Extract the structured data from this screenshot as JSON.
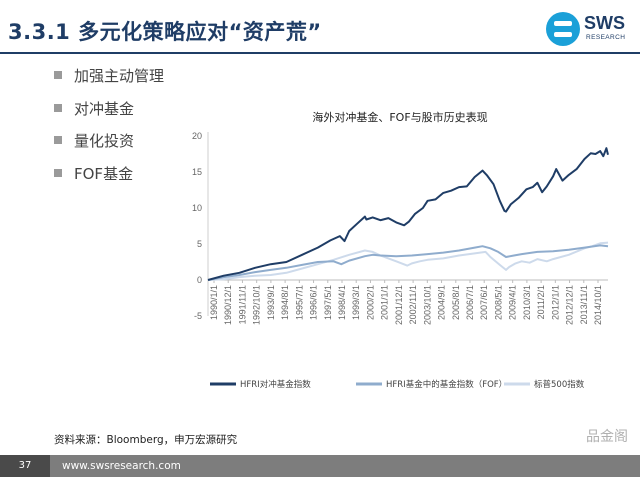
{
  "slide": {
    "title": "3.3.1 多元化策略应对“资产荒”",
    "logo_name": "SWS",
    "logo_sub": "RESEARCH",
    "source": "资料来源：Bloomberg，申万宏源研究",
    "watermark": "品金阁",
    "page_number": "37",
    "website": "www.swsresearch.com"
  },
  "bullets": [
    "加强主动管理",
    "对冲基金",
    "量化投资",
    "FOF基金"
  ],
  "colors": {
    "title": "#1f3d66",
    "hfri": "#1f3d66",
    "fof": "#8faccd",
    "sp500": "#cddaeb",
    "logo": "#1ba0d8"
  },
  "chart_data": {
    "type": "line",
    "title": "海外对冲基金、FOF与股市历史表现",
    "ylim": [
      -5,
      20
    ],
    "yticks": [
      -5,
      0,
      5,
      10,
      15,
      20
    ],
    "xlim": [
      1990.0,
      2015.5
    ],
    "xticks": [
      "1990/1/1",
      "1990/12/1",
      "1991/11/1",
      "1992/10/1",
      "1993/9/1",
      "1994/8/1",
      "1995/7/1",
      "1996/6/1",
      "1997/5/1",
      "1998/4/1",
      "1999/3/1",
      "2000/2/1",
      "2001/1/1",
      "2001/12/1",
      "2002/11/1",
      "2003/10/1",
      "2004/9/1",
      "2005/8/1",
      "2006/7/1",
      "2007/6/1",
      "2008/5/1",
      "2009/4/1",
      "2010/3/1",
      "2011/2/1",
      "2012/1/1",
      "2012/12/1",
      "2013/11/1",
      "2014/10/1"
    ],
    "series": [
      {
        "name": "HFRI对冲基金指数",
        "x": [
          1990.0,
          1991.0,
          1992.0,
          1993.0,
          1994.0,
          1995.0,
          1996.0,
          1997.0,
          1997.8,
          1998.4,
          1998.7,
          1999.0,
          1999.5,
          2000.0,
          2000.1,
          2000.5,
          2001.0,
          2001.5,
          2002.0,
          2002.5,
          2002.8,
          2003.2,
          2003.7,
          2004.0,
          2004.5,
          2005.0,
          2005.5,
          2006.0,
          2006.5,
          2007.0,
          2007.5,
          2007.8,
          2008.2,
          2008.6,
          2008.9,
          2009.0,
          2009.3,
          2009.8,
          2010.3,
          2010.7,
          2011.0,
          2011.3,
          2011.6,
          2012.0,
          2012.2,
          2012.6,
          2013.0,
          2013.5,
          2014.0,
          2014.4,
          2014.7,
          2015.0,
          2015.2,
          2015.4,
          2015.5
        ],
        "y": [
          0,
          0.6,
          1.0,
          1.7,
          2.2,
          2.5,
          3.5,
          4.5,
          5.5,
          6.1,
          5.4,
          6.8,
          7.8,
          8.8,
          8.4,
          8.7,
          8.3,
          8.6,
          8.0,
          7.6,
          8.1,
          9.2,
          10.0,
          11.0,
          11.2,
          12.1,
          12.4,
          12.9,
          13.0,
          14.3,
          15.2,
          14.5,
          13.3,
          11.0,
          9.6,
          9.5,
          10.5,
          11.4,
          12.6,
          12.9,
          13.5,
          12.2,
          13.0,
          14.4,
          15.4,
          13.8,
          14.6,
          15.4,
          16.8,
          17.6,
          17.5,
          17.9,
          17.2,
          18.3,
          17.4
        ]
      },
      {
        "name": "HFRI基金中的基金指数（FOF）",
        "x": [
          1990.0,
          1991.0,
          1992.0,
          1993.0,
          1994.0,
          1995.0,
          1996.0,
          1997.0,
          1998.0,
          1998.5,
          1999.0,
          2000.0,
          2000.5,
          2001.0,
          2002.0,
          2003.0,
          2004.0,
          2005.0,
          2006.0,
          2007.0,
          2007.5,
          2008.0,
          2008.5,
          2009.0,
          2009.5,
          2010.0,
          2011.0,
          2012.0,
          2013.0,
          2014.0,
          2015.0,
          2015.5
        ],
        "y": [
          0,
          0.4,
          0.7,
          1.1,
          1.4,
          1.7,
          2.1,
          2.5,
          2.6,
          2.2,
          2.7,
          3.3,
          3.5,
          3.4,
          3.3,
          3.4,
          3.6,
          3.8,
          4.1,
          4.5,
          4.7,
          4.4,
          3.9,
          3.2,
          3.4,
          3.6,
          3.9,
          4.0,
          4.2,
          4.5,
          4.8,
          4.7
        ]
      },
      {
        "name": "标普500指数",
        "x": [
          1990.0,
          1991.0,
          1992.0,
          1993.0,
          1994.0,
          1995.0,
          1996.0,
          1997.0,
          1998.0,
          1999.0,
          2000.0,
          2000.5,
          2001.0,
          2001.5,
          2002.0,
          2002.7,
          2003.0,
          2003.5,
          2004.0,
          2005.0,
          2006.0,
          2007.0,
          2007.7,
          2008.0,
          2008.6,
          2009.0,
          2009.2,
          2009.6,
          2010.0,
          2010.5,
          2011.0,
          2011.6,
          2012.0,
          2013.0,
          2014.0,
          2014.5,
          2015.0,
          2015.5
        ],
        "y": [
          0,
          0.1,
          0.4,
          0.6,
          0.7,
          1.0,
          1.6,
          2.2,
          2.8,
          3.5,
          4.1,
          3.9,
          3.4,
          3.0,
          2.6,
          2.0,
          2.3,
          2.6,
          2.8,
          3.0,
          3.4,
          3.7,
          3.9,
          3.2,
          2.1,
          1.4,
          1.8,
          2.3,
          2.6,
          2.4,
          2.9,
          2.6,
          2.9,
          3.5,
          4.4,
          4.7,
          5.1,
          5.2
        ]
      }
    ],
    "legend_position": "bottom"
  }
}
